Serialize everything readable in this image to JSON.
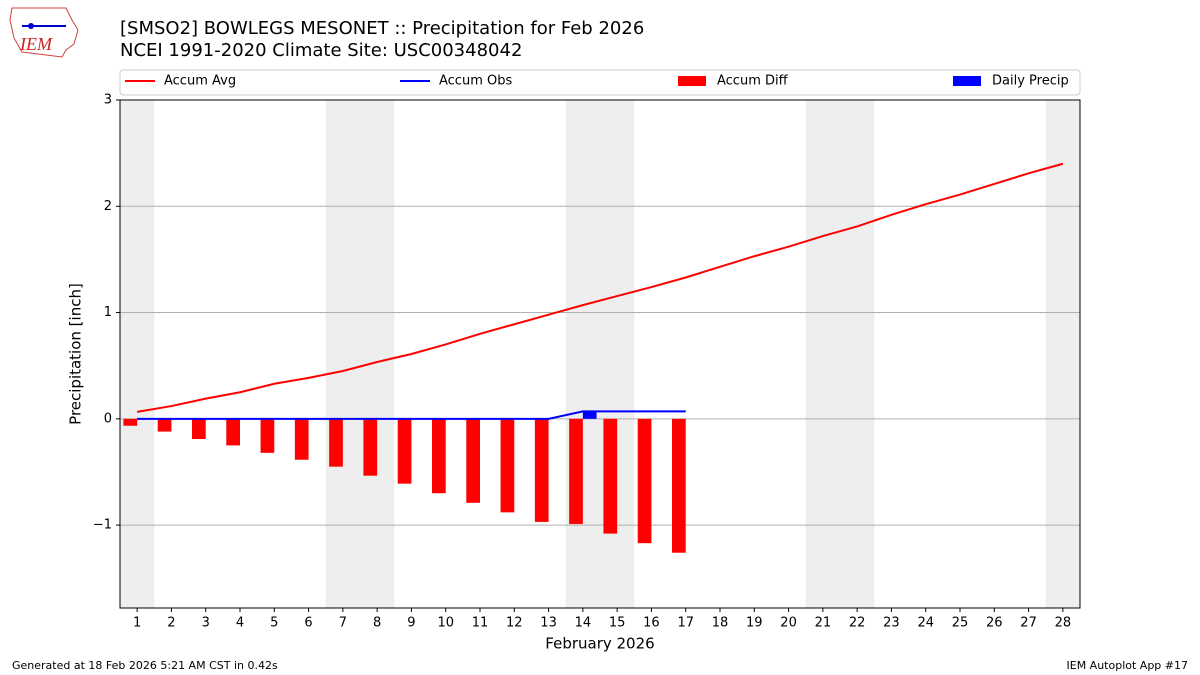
{
  "chart_data": {
    "type": "combo",
    "title": "[SMSO2] BOWLEGS MESONET :: Precipitation for Feb 2026",
    "subtitle": "NCEI 1991-2020 Climate Site: USC00348042",
    "logo_text": "IEM",
    "x_label": "February 2026",
    "y_label": "Precipitation [inch]",
    "x": [
      1,
      2,
      3,
      4,
      5,
      6,
      7,
      8,
      9,
      10,
      11,
      12,
      13,
      14,
      15,
      16,
      17,
      18,
      19,
      20,
      21,
      22,
      23,
      24,
      25,
      26,
      27,
      28
    ],
    "xlim": [
      0.5,
      28.5
    ],
    "xticks": [
      1,
      2,
      3,
      4,
      5,
      6,
      7,
      8,
      9,
      10,
      11,
      12,
      13,
      14,
      15,
      16,
      17,
      18,
      19,
      20,
      21,
      22,
      23,
      24,
      25,
      26,
      27,
      28
    ],
    "ylim": [
      -1.78,
      3
    ],
    "yticks": [
      {
        "value": -1,
        "label": "−1"
      },
      0,
      1,
      2,
      3
    ],
    "grid": true,
    "shaded_days": [
      1,
      7,
      8,
      14,
      15,
      21,
      22,
      28
    ],
    "shade_color": "#eeeeee",
    "series": [
      {
        "name": "Accum Avg",
        "type": "line",
        "color": "#ff0000",
        "values": [
          0.065,
          0.12,
          0.19,
          0.25,
          0.33,
          0.385,
          0.45,
          0.535,
          0.61,
          0.7,
          0.8,
          0.89,
          0.98,
          1.07,
          1.155,
          1.24,
          1.33,
          1.43,
          1.53,
          1.62,
          1.72,
          1.81,
          1.92,
          2.02,
          2.11,
          2.21,
          2.31,
          2.4
        ]
      },
      {
        "name": "Accum Obs",
        "type": "line",
        "color": "#0000ff",
        "values": [
          0,
          0,
          0,
          0,
          0,
          0,
          0,
          0,
          0,
          0,
          0,
          0,
          0,
          0.07,
          0.07,
          0.07,
          0.07,
          null,
          null,
          null,
          null,
          null,
          null,
          null,
          null,
          null,
          null,
          null
        ]
      },
      {
        "name": "Accum Diff",
        "type": "bar",
        "offset": -0.4,
        "color": "#ff0000",
        "values": [
          -0.065,
          -0.12,
          -0.19,
          -0.25,
          -0.32,
          -0.385,
          -0.45,
          -0.535,
          -0.61,
          -0.7,
          -0.79,
          -0.88,
          -0.97,
          -0.99,
          -1.08,
          -1.17,
          -1.26,
          null,
          null,
          null,
          null,
          null,
          null,
          null,
          null,
          null,
          null,
          null
        ]
      },
      {
        "name": "Daily Precip",
        "type": "bar",
        "offset": 0,
        "color": "#0000ff",
        "values": [
          0,
          0,
          0,
          0,
          0,
          0,
          0,
          0,
          0,
          0,
          0,
          0,
          0,
          0.07,
          0,
          0,
          0,
          null,
          null,
          null,
          null,
          null,
          null,
          null,
          null,
          null,
          null,
          null
        ]
      }
    ],
    "footer_left": "Generated at 18 Feb 2026 5:21 AM CST in 0.42s",
    "footer_right": "IEM Autoplot App #17"
  }
}
